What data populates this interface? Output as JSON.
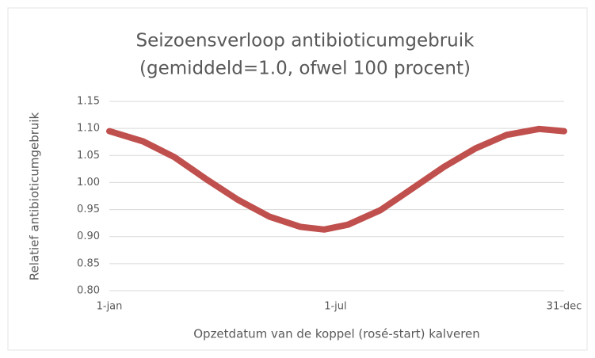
{
  "chart_data": {
    "type": "line",
    "title": [
      "Seizoensverloop antibioticumgebruik",
      "(gemiddeld=1.0, ofwel 100 procent)"
    ],
    "x_label": "Opzetdatum van de koppel (rosé-start) kalveren",
    "y_label": "Relatief antibioticumgebruik",
    "x": [
      1,
      28,
      53,
      78,
      104,
      129,
      154,
      173,
      192,
      218,
      243,
      269,
      294,
      319,
      345,
      365
    ],
    "series": [
      {
        "color": "#c0504d",
        "values": [
          1.095,
          1.076,
          1.047,
          1.007,
          0.968,
          0.937,
          0.918,
          0.913,
          0.922,
          0.949,
          0.988,
          1.029,
          1.063,
          1.088,
          1.099,
          1.095
        ]
      }
    ],
    "xlim": [
      1,
      365
    ],
    "xticks": [
      {
        "value": 1,
        "label": "1-jan"
      },
      {
        "value": 182,
        "label": "1-jul"
      },
      {
        "value": 365,
        "label": "31-dec"
      }
    ],
    "ylim": [
      0.8,
      1.15
    ],
    "yticks": [
      {
        "value": 0.8,
        "label": "0.80"
      },
      {
        "value": 0.85,
        "label": "0.85"
      },
      {
        "value": 0.9,
        "label": "0.90"
      },
      {
        "value": 0.95,
        "label": "0.95"
      },
      {
        "value": 1.0,
        "label": "1.00"
      },
      {
        "value": 1.05,
        "label": "1.05"
      },
      {
        "value": 1.1,
        "label": "1.10"
      },
      {
        "value": 1.15,
        "label": "1.15"
      }
    ],
    "grid": true
  }
}
